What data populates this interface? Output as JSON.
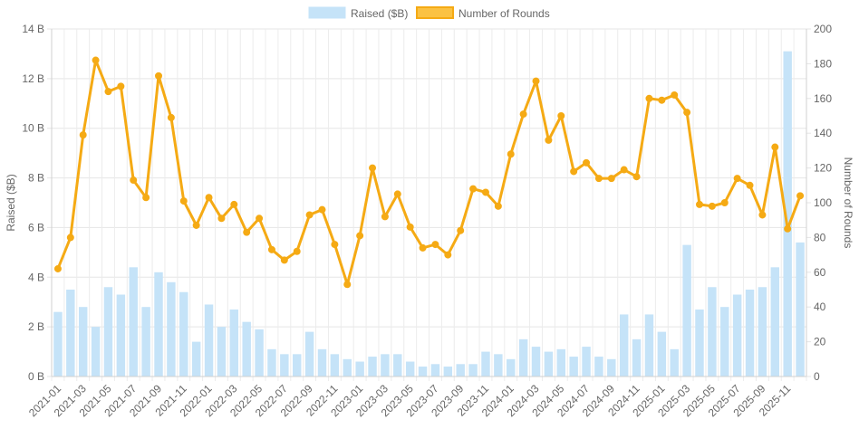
{
  "chart_data": {
    "type": "bar",
    "legend_position": "top",
    "grid": true,
    "legend": {
      "raised_label": "Raised ($B)",
      "rounds_label": "Number of Rounds"
    },
    "ylabel_left": "Raised ($B)",
    "ylabel_right": "Number of Rounds",
    "ylim_left": [
      0,
      14
    ],
    "ylim_right": [
      0,
      200
    ],
    "y_left_ticks": [
      "0 B",
      "2 B",
      "4 B",
      "6 B",
      "8 B",
      "10 B",
      "12 B",
      "14 B"
    ],
    "y_right_ticks": [
      "0",
      "20",
      "40",
      "60",
      "80",
      "100",
      "120",
      "140",
      "160",
      "180",
      "200"
    ],
    "x": [
      "2021-01",
      "2021-02",
      "2021-03",
      "2021-04",
      "2021-05",
      "2021-06",
      "2021-07",
      "2021-08",
      "2021-09",
      "2021-10",
      "2021-11",
      "2021-12",
      "2022-01",
      "2022-02",
      "2022-03",
      "2022-04",
      "2022-05",
      "2022-06",
      "2022-07",
      "2022-08",
      "2022-09",
      "2022-10",
      "2022-11",
      "2022-12",
      "2023-01",
      "2023-02",
      "2023-03",
      "2023-04",
      "2023-05",
      "2023-06",
      "2023-07",
      "2023-08",
      "2023-09",
      "2023-10",
      "2023-11",
      "2023-12",
      "2024-01",
      "2024-02",
      "2024-03",
      "2024-04",
      "2024-05",
      "2024-06",
      "2024-07",
      "2024-08",
      "2024-09",
      "2024-10",
      "2024-11",
      "2024-12",
      "2025-01",
      "2025-02",
      "2025-03",
      "2025-04",
      "2025-05",
      "2025-06",
      "2025-07",
      "2025-08",
      "2025-09",
      "2025-10",
      "2025-11",
      "2025-12"
    ],
    "x_tick_labels": [
      "2021-01",
      "2021-03",
      "2021-05",
      "2021-07",
      "2021-09",
      "2021-11",
      "2022-01",
      "2022-03",
      "2022-05",
      "2022-07",
      "2022-09",
      "2022-11",
      "2023-01",
      "2023-03",
      "2023-05",
      "2023-07",
      "2023-09",
      "2023-11",
      "2024-01",
      "2024-03",
      "2024-05",
      "2024-07",
      "2024-09",
      "2024-11",
      "2025-01",
      "2025-03",
      "2025-05",
      "2025-07",
      "2025-09",
      "2025-11"
    ],
    "series": [
      {
        "name": "Raised ($B)",
        "type": "bar",
        "axis": "left",
        "color": "#c5e3f8",
        "values": [
          2.6,
          3.5,
          2.8,
          2.0,
          3.6,
          3.3,
          4.4,
          2.8,
          4.2,
          3.8,
          3.4,
          1.4,
          2.9,
          2.0,
          2.7,
          2.2,
          1.9,
          1.1,
          0.9,
          0.9,
          1.8,
          1.1,
          0.9,
          0.7,
          0.6,
          0.8,
          0.9,
          0.9,
          0.6,
          0.4,
          0.5,
          0.4,
          0.5,
          0.5,
          1.0,
          0.9,
          0.7,
          1.5,
          1.2,
          1.0,
          1.1,
          0.8,
          1.2,
          0.8,
          0.7,
          2.5,
          1.5,
          2.5,
          1.8,
          1.1,
          5.3,
          2.7,
          3.6,
          2.8,
          3.3,
          3.5,
          3.6,
          4.4,
          13.1,
          5.4
        ]
      },
      {
        "name": "Number of Rounds",
        "type": "line",
        "axis": "right",
        "color": "#f5aa14",
        "values": [
          62,
          80,
          139,
          182,
          164,
          167,
          113,
          103,
          173,
          149,
          101,
          87,
          103,
          91,
          99,
          83,
          91,
          73,
          67,
          72,
          93,
          96,
          76,
          53,
          81,
          120,
          92,
          105,
          86,
          74,
          76,
          70,
          84,
          108,
          106,
          98,
          128,
          151,
          170,
          136,
          150,
          118,
          123,
          114,
          114,
          119,
          115,
          160,
          159,
          162,
          152,
          99,
          98,
          100,
          114,
          110,
          93,
          132,
          85,
          104
        ]
      }
    ]
  }
}
